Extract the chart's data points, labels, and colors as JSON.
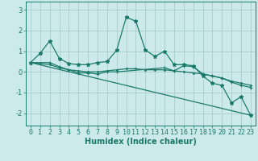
{
  "bg_color": "#cdeaea",
  "grid_color": "#aacccc",
  "line_color": "#1a7a6a",
  "xlabel": "Humidex (Indice chaleur)",
  "xlabel_fontsize": 7,
  "tick_fontsize": 6,
  "ylim": [
    -2.6,
    3.4
  ],
  "xlim": [
    -0.5,
    23.5
  ],
  "yticks": [
    -2,
    -1,
    0,
    1,
    2,
    3
  ],
  "xticks": [
    0,
    1,
    2,
    3,
    4,
    5,
    6,
    7,
    8,
    9,
    10,
    11,
    12,
    13,
    14,
    15,
    16,
    17,
    18,
    19,
    20,
    21,
    22,
    23
  ],
  "series": [
    {
      "x": [
        0,
        1,
        2,
        3,
        4,
        5,
        6,
        7,
        8,
        9,
        10,
        11,
        12,
        13,
        14,
        15,
        16,
        17,
        18,
        19,
        20,
        21,
        22,
        23
      ],
      "y": [
        0.45,
        0.9,
        1.5,
        0.65,
        0.4,
        0.35,
        0.35,
        0.45,
        0.5,
        1.05,
        2.65,
        2.45,
        1.05,
        0.75,
        1.0,
        0.35,
        0.35,
        0.3,
        -0.2,
        -0.55,
        -0.65,
        -1.5,
        -1.2,
        -2.1
      ],
      "marker": "*",
      "markersize": 3.5,
      "linestyle": "-",
      "linewidth": 0.9
    },
    {
      "x": [
        0,
        1,
        2,
        3,
        4,
        5,
        6,
        7,
        8,
        9,
        10,
        11,
        12,
        13,
        14,
        15,
        16,
        17,
        18,
        19,
        20,
        21,
        22,
        23
      ],
      "y": [
        0.45,
        0.4,
        0.35,
        0.2,
        0.1,
        0.05,
        0.0,
        0.0,
        0.05,
        0.1,
        0.15,
        0.15,
        0.1,
        0.1,
        0.1,
        0.05,
        0.0,
        -0.05,
        -0.1,
        -0.2,
        -0.3,
        -0.45,
        -0.55,
        -0.65
      ],
      "marker": ".",
      "markersize": 2.5,
      "linestyle": "-",
      "linewidth": 0.9
    },
    {
      "x": [
        0,
        2,
        3,
        4,
        5,
        6,
        7,
        8,
        9,
        14,
        15,
        16,
        17,
        18,
        19,
        20,
        21,
        22,
        23
      ],
      "y": [
        0.45,
        0.45,
        0.25,
        0.1,
        -0.05,
        -0.05,
        -0.1,
        0.0,
        0.0,
        0.2,
        0.05,
        0.3,
        0.25,
        -0.1,
        -0.2,
        -0.3,
        -0.5,
        -0.65,
        -0.75
      ],
      "marker": "+",
      "markersize": 3.5,
      "linestyle": "-",
      "linewidth": 0.9
    },
    {
      "x": [
        0,
        23
      ],
      "y": [
        0.45,
        -2.1
      ],
      "marker": null,
      "markersize": 0,
      "linestyle": "-",
      "linewidth": 0.9
    }
  ]
}
